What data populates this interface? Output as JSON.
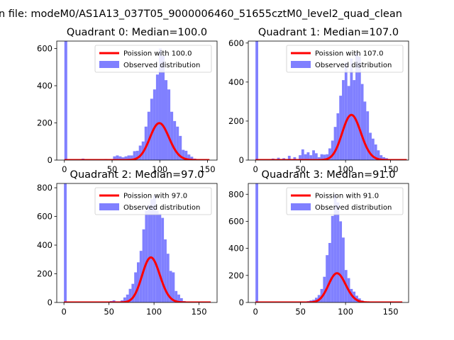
{
  "figure": {
    "suptitle": "n file: modeM0/AS1A13_037T05_9000006460_51655cztM0_level2_quad_clean"
  },
  "colors": {
    "fit_line": "#ff0000",
    "histogram": "#8080ff",
    "axes": "#000000",
    "legend_border": "#cccccc"
  },
  "chart_data": [
    {
      "type": "bar",
      "title": "Quadrant 0: Median=100.0",
      "xticks": [
        0,
        50,
        100,
        150
      ],
      "yticks": [
        0,
        200,
        400,
        600
      ],
      "xlim": [
        -8,
        160
      ],
      "ylim": [
        0,
        640
      ],
      "legend": {
        "position": "top-right",
        "entries": [
          "Poission with 100.0",
          "Observed distribution"
        ]
      },
      "series": [
        {
          "name": "Observed distribution",
          "bins": [
            [
              0,
              3,
              640
            ],
            [
              18,
              21,
              8
            ],
            [
              21,
              24,
              5
            ],
            [
              30,
              33,
              5
            ],
            [
              36,
              39,
              4
            ],
            [
              42,
              45,
              6
            ],
            [
              48,
              51,
              5
            ],
            [
              51,
              54,
              20
            ],
            [
              54,
              57,
              25
            ],
            [
              57,
              60,
              20
            ],
            [
              60,
              63,
              15
            ],
            [
              63,
              66,
              20
            ],
            [
              66,
              69,
              25
            ],
            [
              69,
              72,
              25
            ],
            [
              72,
              75,
              48
            ],
            [
              75,
              78,
              50
            ],
            [
              78,
              81,
              78
            ],
            [
              81,
              84,
              100
            ],
            [
              84,
              87,
              180
            ],
            [
              87,
              90,
              260
            ],
            [
              90,
              93,
              330
            ],
            [
              93,
              96,
              380
            ],
            [
              96,
              99,
              460
            ],
            [
              99,
              102,
              600
            ],
            [
              102,
              105,
              560
            ],
            [
              105,
              108,
              430
            ],
            [
              108,
              111,
              380
            ],
            [
              111,
              114,
              260
            ],
            [
              114,
              117,
              210
            ],
            [
              117,
              120,
              180
            ],
            [
              120,
              123,
              130
            ],
            [
              123,
              126,
              55
            ],
            [
              126,
              129,
              50
            ],
            [
              129,
              132,
              30
            ],
            [
              132,
              135,
              18
            ],
            [
              135,
              138,
              8
            ],
            [
              138,
              141,
              5
            ]
          ]
        },
        {
          "name": "Poission with 100.0",
          "mean": 100.0,
          "x_range": [
            0,
            152
          ]
        }
      ]
    },
    {
      "type": "bar",
      "title": "Quadrant 1: Median=107.0",
      "xticks": [
        0,
        50,
        100,
        150
      ],
      "yticks": [
        0,
        200,
        400,
        600
      ],
      "xlim": [
        -8,
        170
      ],
      "ylim": [
        0,
        610
      ],
      "legend": {
        "position": "top-right",
        "entries": [
          "Poission with 107.0",
          "Observed distribution"
        ]
      },
      "series": [
        {
          "name": "Observed distribution",
          "bins": [
            [
              0,
              3,
              610
            ],
            [
              18,
              21,
              8
            ],
            [
              24,
              27,
              12
            ],
            [
              30,
              33,
              10
            ],
            [
              36,
              39,
              22
            ],
            [
              42,
              45,
              15
            ],
            [
              48,
              51,
              25
            ],
            [
              51,
              54,
              55
            ],
            [
              54,
              57,
              30
            ],
            [
              57,
              60,
              40
            ],
            [
              60,
              63,
              25
            ],
            [
              63,
              66,
              50
            ],
            [
              66,
              69,
              35
            ],
            [
              69,
              72,
              15
            ],
            [
              72,
              75,
              30
            ],
            [
              75,
              78,
              28
            ],
            [
              78,
              81,
              30
            ],
            [
              81,
              84,
              60
            ],
            [
              84,
              87,
              100
            ],
            [
              87,
              90,
              170
            ],
            [
              90,
              93,
              240
            ],
            [
              93,
              96,
              330
            ],
            [
              96,
              99,
              410
            ],
            [
              99,
              102,
              500
            ],
            [
              102,
              105,
              380
            ],
            [
              105,
              108,
              520
            ],
            [
              108,
              111,
              410
            ],
            [
              111,
              114,
              550
            ],
            [
              114,
              117,
              530
            ],
            [
              117,
              120,
              390
            ],
            [
              120,
              123,
              300
            ],
            [
              123,
              126,
              250
            ],
            [
              126,
              129,
              140
            ],
            [
              129,
              132,
              110
            ],
            [
              132,
              135,
              80
            ],
            [
              135,
              138,
              50
            ],
            [
              138,
              141,
              25
            ],
            [
              141,
              144,
              15
            ],
            [
              144,
              147,
              10
            ],
            [
              147,
              150,
              5
            ]
          ]
        },
        {
          "name": "Poission with 107.0",
          "mean": 107.0,
          "x_range": [
            0,
            168
          ]
        }
      ]
    },
    {
      "type": "bar",
      "title": "Quadrant 2: Median=97.0",
      "xticks": [
        0,
        50,
        100,
        150
      ],
      "yticks": [
        0,
        200,
        400,
        600,
        800
      ],
      "xlim": [
        -8,
        170
      ],
      "ylim": [
        0,
        830
      ],
      "legend": {
        "position": "top-right",
        "entries": [
          "Poission with 97.0",
          "Observed distribution"
        ]
      },
      "series": [
        {
          "name": "Observed distribution",
          "bins": [
            [
              0,
              3,
              830
            ],
            [
              51,
              54,
              10
            ],
            [
              54,
              57,
              15
            ],
            [
              57,
              60,
              8
            ],
            [
              60,
              63,
              8
            ],
            [
              63,
              66,
              15
            ],
            [
              66,
              69,
              35
            ],
            [
              69,
              72,
              55
            ],
            [
              72,
              75,
              95
            ],
            [
              75,
              78,
              130
            ],
            [
              78,
              81,
              210
            ],
            [
              81,
              84,
              280
            ],
            [
              84,
              87,
              360
            ],
            [
              87,
              90,
              510
            ],
            [
              90,
              93,
              640
            ],
            [
              93,
              96,
              680
            ],
            [
              96,
              99,
              720
            ],
            [
              99,
              102,
              750
            ],
            [
              102,
              105,
              640
            ],
            [
              105,
              108,
              620
            ],
            [
              108,
              111,
              590
            ],
            [
              111,
              114,
              440
            ],
            [
              114,
              117,
              340
            ],
            [
              117,
              120,
              220
            ],
            [
              120,
              123,
              210
            ],
            [
              123,
              126,
              80
            ],
            [
              126,
              129,
              55
            ],
            [
              129,
              132,
              30
            ],
            [
              132,
              135,
              10
            ]
          ]
        },
        {
          "name": "Poission with 97.0",
          "mean": 97.0,
          "x_range": [
            0,
            163
          ]
        }
      ]
    },
    {
      "type": "bar",
      "title": "Quadrant 3: Median=91.0",
      "xticks": [
        0,
        50,
        100,
        150
      ],
      "yticks": [
        0,
        200,
        400,
        600,
        800
      ],
      "xlim": [
        -8,
        170
      ],
      "ylim": [
        0,
        880
      ],
      "legend": {
        "position": "top-right",
        "entries": [
          "Poission with 91.0",
          "Observed distribution"
        ]
      },
      "series": [
        {
          "name": "Observed distribution",
          "bins": [
            [
              0,
              3,
              880
            ],
            [
              57,
              60,
              10
            ],
            [
              60,
              63,
              15
            ],
            [
              63,
              66,
              20
            ],
            [
              66,
              69,
              35
            ],
            [
              69,
              72,
              55
            ],
            [
              72,
              75,
              100
            ],
            [
              75,
              78,
              190
            ],
            [
              78,
              81,
              350
            ],
            [
              81,
              84,
              440
            ],
            [
              84,
              87,
              640
            ],
            [
              87,
              90,
              800
            ],
            [
              90,
              93,
              740
            ],
            [
              93,
              96,
              600
            ],
            [
              96,
              99,
              480
            ],
            [
              99,
              102,
              240
            ],
            [
              102,
              105,
              180
            ],
            [
              105,
              108,
              100
            ],
            [
              108,
              111,
              80
            ],
            [
              111,
              114,
              50
            ],
            [
              114,
              117,
              30
            ],
            [
              117,
              120,
              15
            ]
          ]
        },
        {
          "name": "Poission with 91.0",
          "mean": 91.0,
          "x_range": [
            0,
            163
          ]
        }
      ]
    }
  ]
}
